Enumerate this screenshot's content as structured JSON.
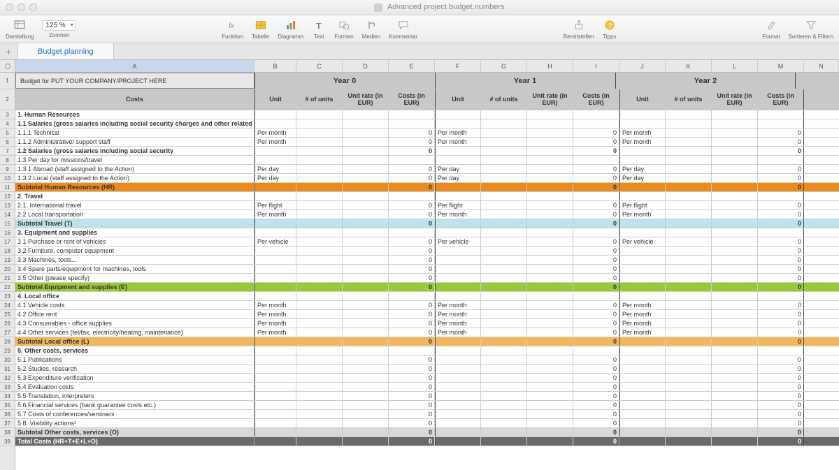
{
  "window": {
    "title": "Advanced project budget.numbers"
  },
  "toolbar": {
    "zoom": "125 %",
    "darstellung": "Darstellung",
    "zoomen": "Zoomen",
    "funktion": "Funktion",
    "tabelle": "Tabelle",
    "diagramm": "Diagramm",
    "text": "Text",
    "formen": "Formen",
    "medien": "Medien",
    "kommentar": "Kommentar",
    "bereitstellen": "Bereitstellen",
    "tipps": "Tipps",
    "format": "Format",
    "sort": "Sortieren & Filtern"
  },
  "tabs": {
    "sheet1": "Budget planning"
  },
  "columns": [
    "A",
    "B",
    "C",
    "D",
    "E",
    "F",
    "G",
    "H",
    "I",
    "J",
    "K",
    "L",
    "M",
    "N"
  ],
  "budget": {
    "title": "Budget for PUT YOUR COMPANY/PROJECT HERE",
    "years": [
      "Year 0",
      "Year 1",
      "Year 2"
    ],
    "headers": {
      "costs": "Costs",
      "unit": "Unit",
      "nunits": "# of units",
      "rate": "Unit rate (in EUR)",
      "costseur": "Costs (in EUR)"
    },
    "rows": [
      {
        "n": 3,
        "t": "section",
        "a": "1. Human Resources"
      },
      {
        "n": 4,
        "t": "bold",
        "a": "1.1 Salaries (gross salaries including social security charges and other related"
      },
      {
        "n": 5,
        "t": "item",
        "a": "   1.1.1 Technical",
        "unit": "Per month",
        "zero": true
      },
      {
        "n": 6,
        "t": "item",
        "a": "   1.1.2 Administrative/ support staff",
        "unit": "Per month",
        "zero": true
      },
      {
        "n": 7,
        "t": "bold",
        "a": "1.2 Salaries (gross salaries including social security",
        "zeroE": true
      },
      {
        "n": 8,
        "t": "item",
        "a": "1.3 Per day for missions/travel"
      },
      {
        "n": 9,
        "t": "item",
        "a": "   1.3.1 Abroad (staff assigned to the Action)",
        "unit": "Per day",
        "zero": true
      },
      {
        "n": 10,
        "t": "item",
        "a": "   1.3.2 Local (staff assigned to the Action)",
        "unit": "Per day",
        "zero": true
      },
      {
        "n": 11,
        "t": "sub-hr",
        "a": "Subtotal Human Resources (HR)",
        "zeroB": true
      },
      {
        "n": 12,
        "t": "section",
        "a": "2. Travel"
      },
      {
        "n": 13,
        "t": "item",
        "a": "2.1. International travel",
        "unit": "Per flight",
        "zero": true
      },
      {
        "n": 14,
        "t": "item",
        "a": "2.2 Local transportation",
        "unit": "Per month",
        "zero": true
      },
      {
        "n": 15,
        "t": "sub-t",
        "a": "Subtotal Travel (T)",
        "zeroB": true
      },
      {
        "n": 16,
        "t": "section",
        "a": "3. Equipment and supplies"
      },
      {
        "n": 17,
        "t": "item",
        "a": "3.1 Purchase or rent of vehicles",
        "unit": "Per vehicle",
        "zero": true
      },
      {
        "n": 18,
        "t": "item",
        "a": "3.2 Furniture, computer equipment",
        "zeroE": true
      },
      {
        "n": 19,
        "t": "item",
        "a": "3.3 Machines, tools...",
        "zeroE": true
      },
      {
        "n": 20,
        "t": "item",
        "a": "3.4 Spare parts/equipment for machines, tools",
        "zeroE": true
      },
      {
        "n": 21,
        "t": "item",
        "a": "3.5 Other (please specify)",
        "zeroE": true
      },
      {
        "n": 22,
        "t": "sub-e",
        "a": "Subtotal Equipment and supplies (E)",
        "zeroB": true
      },
      {
        "n": 23,
        "t": "section",
        "a": "4. Local office"
      },
      {
        "n": 24,
        "t": "item",
        "a": "4.1 Vehicle costs",
        "unit": "Per month",
        "zero": true
      },
      {
        "n": 25,
        "t": "item",
        "a": "4.2 Office rent",
        "unit": "Per month",
        "zero": true
      },
      {
        "n": 26,
        "t": "item",
        "a": "4.3 Consumables - office supplies",
        "unit": "Per month",
        "zero": true
      },
      {
        "n": 27,
        "t": "item",
        "a": "4.4 Other services (tel/fax, electricity/heating, maintenance)",
        "unit": "Per month",
        "zero": true
      },
      {
        "n": 28,
        "t": "sub-l",
        "a": "Subtotal Local office (L)",
        "zeroB": true
      },
      {
        "n": 29,
        "t": "section",
        "a": "5. Other costs, services"
      },
      {
        "n": 30,
        "t": "item",
        "a": "5.1 Publications",
        "zeroE": true
      },
      {
        "n": 31,
        "t": "item",
        "a": "5.2 Studies, research",
        "zeroE": true
      },
      {
        "n": 32,
        "t": "item",
        "a": "5.3 Expenditure verification",
        "zeroE": true
      },
      {
        "n": 33,
        "t": "item",
        "a": "5.4 Evaluation costs",
        "zeroE": true
      },
      {
        "n": 34,
        "t": "item",
        "a": "5.5 Translation, interpreters",
        "zeroE": true
      },
      {
        "n": 35,
        "t": "item",
        "a": "5.6 Financial services (bank guarantee costs etc.)",
        "zeroE": true
      },
      {
        "n": 36,
        "t": "item",
        "a": "5.7 Costs of conferences/seminars",
        "zeroE": true
      },
      {
        "n": 37,
        "t": "item",
        "a": "5.8. Visibility actions¹",
        "zeroE": true
      },
      {
        "n": 38,
        "t": "sub-o",
        "a": "Subtotal Other costs, services (O)",
        "zeroB": true
      },
      {
        "n": 39,
        "t": "total",
        "a": "Total Costs (HR+T+E+L+O)",
        "zeroB": true
      }
    ]
  },
  "colors": {
    "hr": "#eb8b1e",
    "travel": "#bfe3ea",
    "equip": "#9cc93a",
    "local": "#f0b85a",
    "other": "#d8d8d8",
    "total": "#6a6a6a",
    "header": "#c8c8c8"
  }
}
